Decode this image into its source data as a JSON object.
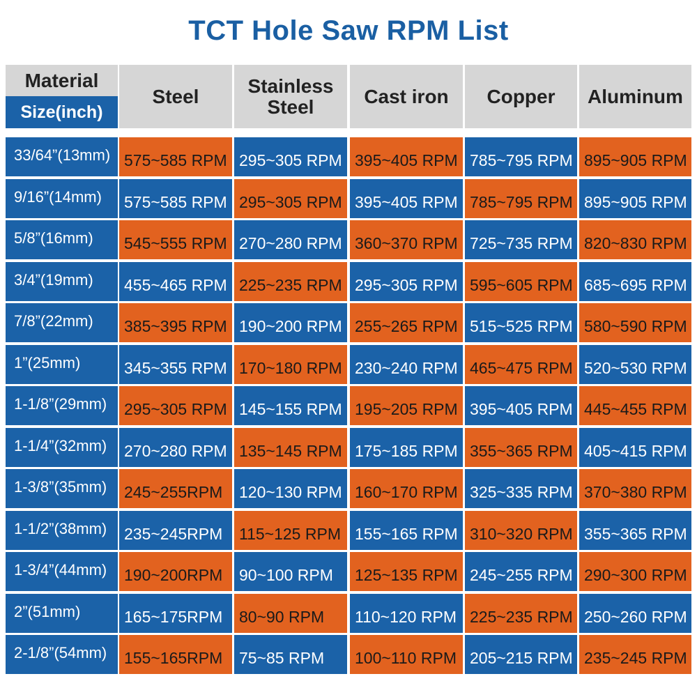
{
  "title": "TCT Hole Saw RPM List",
  "colors": {
    "blue": "#1b62a8",
    "orange": "#e2621f",
    "header_grey": "#d6d6d6",
    "title_blue": "#1a5fa3"
  },
  "corner": {
    "material_label": "Material",
    "size_label": "Size(inch)"
  },
  "columns": [
    "Steel",
    "Stainless\nSteel",
    "Cast iron",
    "Copper",
    "Aluminum"
  ],
  "rows": [
    {
      "size": "33/64”(13mm)",
      "values": [
        "575~585 RPM",
        "295~305 RPM",
        "395~405 RPM",
        "785~795 RPM",
        "895~905 RPM"
      ]
    },
    {
      "size": "9/16”(14mm)",
      "values": [
        "575~585 RPM",
        "295~305 RPM",
        "395~405 RPM",
        "785~795 RPM",
        "895~905 RPM"
      ]
    },
    {
      "size": "5/8”(16mm)",
      "values": [
        "545~555 RPM",
        "270~280 RPM",
        "360~370 RPM",
        "725~735 RPM",
        "820~830 RPM"
      ]
    },
    {
      "size": "3/4”(19mm)",
      "values": [
        "455~465 RPM",
        "225~235 RPM",
        "295~305 RPM",
        "595~605 RPM",
        "685~695 RPM"
      ]
    },
    {
      "size": "7/8”(22mm)",
      "values": [
        "385~395 RPM",
        "190~200 RPM",
        "255~265 RPM",
        "515~525 RPM",
        "580~590 RPM"
      ]
    },
    {
      "size": "1”(25mm)",
      "values": [
        "345~355 RPM",
        "170~180 RPM",
        "230~240 RPM",
        "465~475 RPM",
        "520~530 RPM"
      ]
    },
    {
      "size": "1-1/8”(29mm)",
      "values": [
        "295~305 RPM",
        "145~155 RPM",
        "195~205 RPM",
        "395~405 RPM",
        "445~455 RPM"
      ]
    },
    {
      "size": "1-1/4”(32mm)",
      "values": [
        "270~280 RPM",
        "135~145 RPM",
        "175~185 RPM",
        "355~365 RPM",
        "405~415 RPM"
      ]
    },
    {
      "size": "1-3/8”(35mm)",
      "values": [
        "245~255RPM",
        "120~130 RPM",
        "160~170 RPM",
        "325~335 RPM",
        "370~380 RPM"
      ]
    },
    {
      "size": "1-1/2”(38mm)",
      "values": [
        "235~245RPM",
        "115~125 RPM",
        "155~165 RPM",
        "310~320 RPM",
        "355~365 RPM"
      ]
    },
    {
      "size": "1-3/4”(44mm)",
      "values": [
        "190~200RPM",
        "90~100 RPM",
        "125~135 RPM",
        "245~255 RPM",
        "290~300 RPM"
      ]
    },
    {
      "size": "2”(51mm)",
      "values": [
        "165~175RPM",
        "80~90 RPM",
        "110~120 RPM",
        "225~235 RPM",
        "250~260 RPM"
      ]
    },
    {
      "size": "2-1/8”(54mm)",
      "values": [
        "155~165RPM",
        "75~85 RPM",
        "100~110 RPM",
        "205~215 RPM",
        "235~245 RPM"
      ]
    }
  ]
}
